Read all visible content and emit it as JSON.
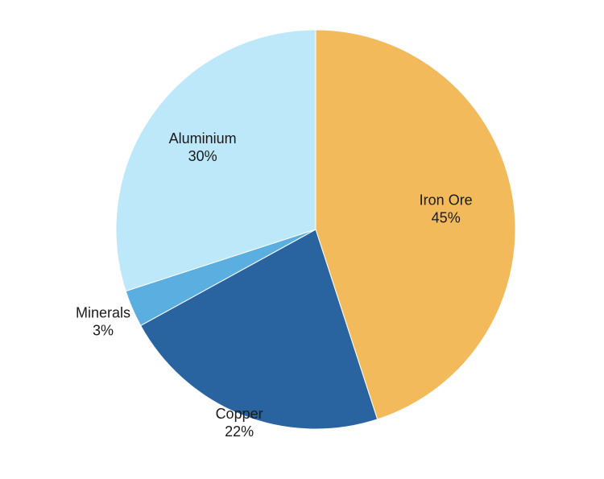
{
  "chart_data": {
    "type": "pie",
    "title": "",
    "start_angle_deg": 0,
    "direction": "clockwise",
    "slices": [
      {
        "label": "Iron Ore",
        "value": 45,
        "value_label": "45%",
        "color": "#F2BA5A"
      },
      {
        "label": "Copper",
        "value": 22,
        "value_label": "22%",
        "color": "#2A64A0"
      },
      {
        "label": "Minerals",
        "value": 3,
        "value_label": "3%",
        "color": "#5BAEE0"
      },
      {
        "label": "Aluminium",
        "value": 30,
        "value_label": "30%",
        "color": "#BDE8FA"
      }
    ]
  }
}
